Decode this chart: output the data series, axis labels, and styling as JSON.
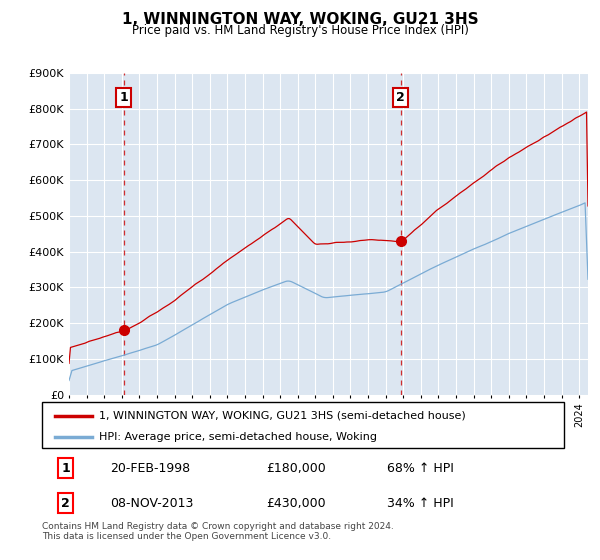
{
  "title": "1, WINNINGTON WAY, WOKING, GU21 3HS",
  "subtitle": "Price paid vs. HM Land Registry's House Price Index (HPI)",
  "red_label": "1, WINNINGTON WAY, WOKING, GU21 3HS (semi-detached house)",
  "blue_label": "HPI: Average price, semi-detached house, Woking",
  "sale1_date": "20-FEB-1998",
  "sale1_price": 180000,
  "sale1_hpi": "68% ↑ HPI",
  "sale2_date": "08-NOV-2013",
  "sale2_price": 430000,
  "sale2_hpi": "34% ↑ HPI",
  "footnote": "Contains HM Land Registry data © Crown copyright and database right 2024.\nThis data is licensed under the Open Government Licence v3.0.",
  "ylim": [
    0,
    900000
  ],
  "yticks": [
    0,
    100000,
    200000,
    300000,
    400000,
    500000,
    600000,
    700000,
    800000,
    900000
  ],
  "background_color": "#ffffff",
  "plot_bg_color": "#dce6f1",
  "grid_color": "#ffffff",
  "red_color": "#cc0000",
  "blue_color": "#7aabd4",
  "vline_color": "#cc0000",
  "marker1_x": 1998.12,
  "marker1_y": 180000,
  "marker2_x": 2013.85,
  "marker2_y": 430000,
  "xmin": 1995.0,
  "xmax": 2024.5
}
